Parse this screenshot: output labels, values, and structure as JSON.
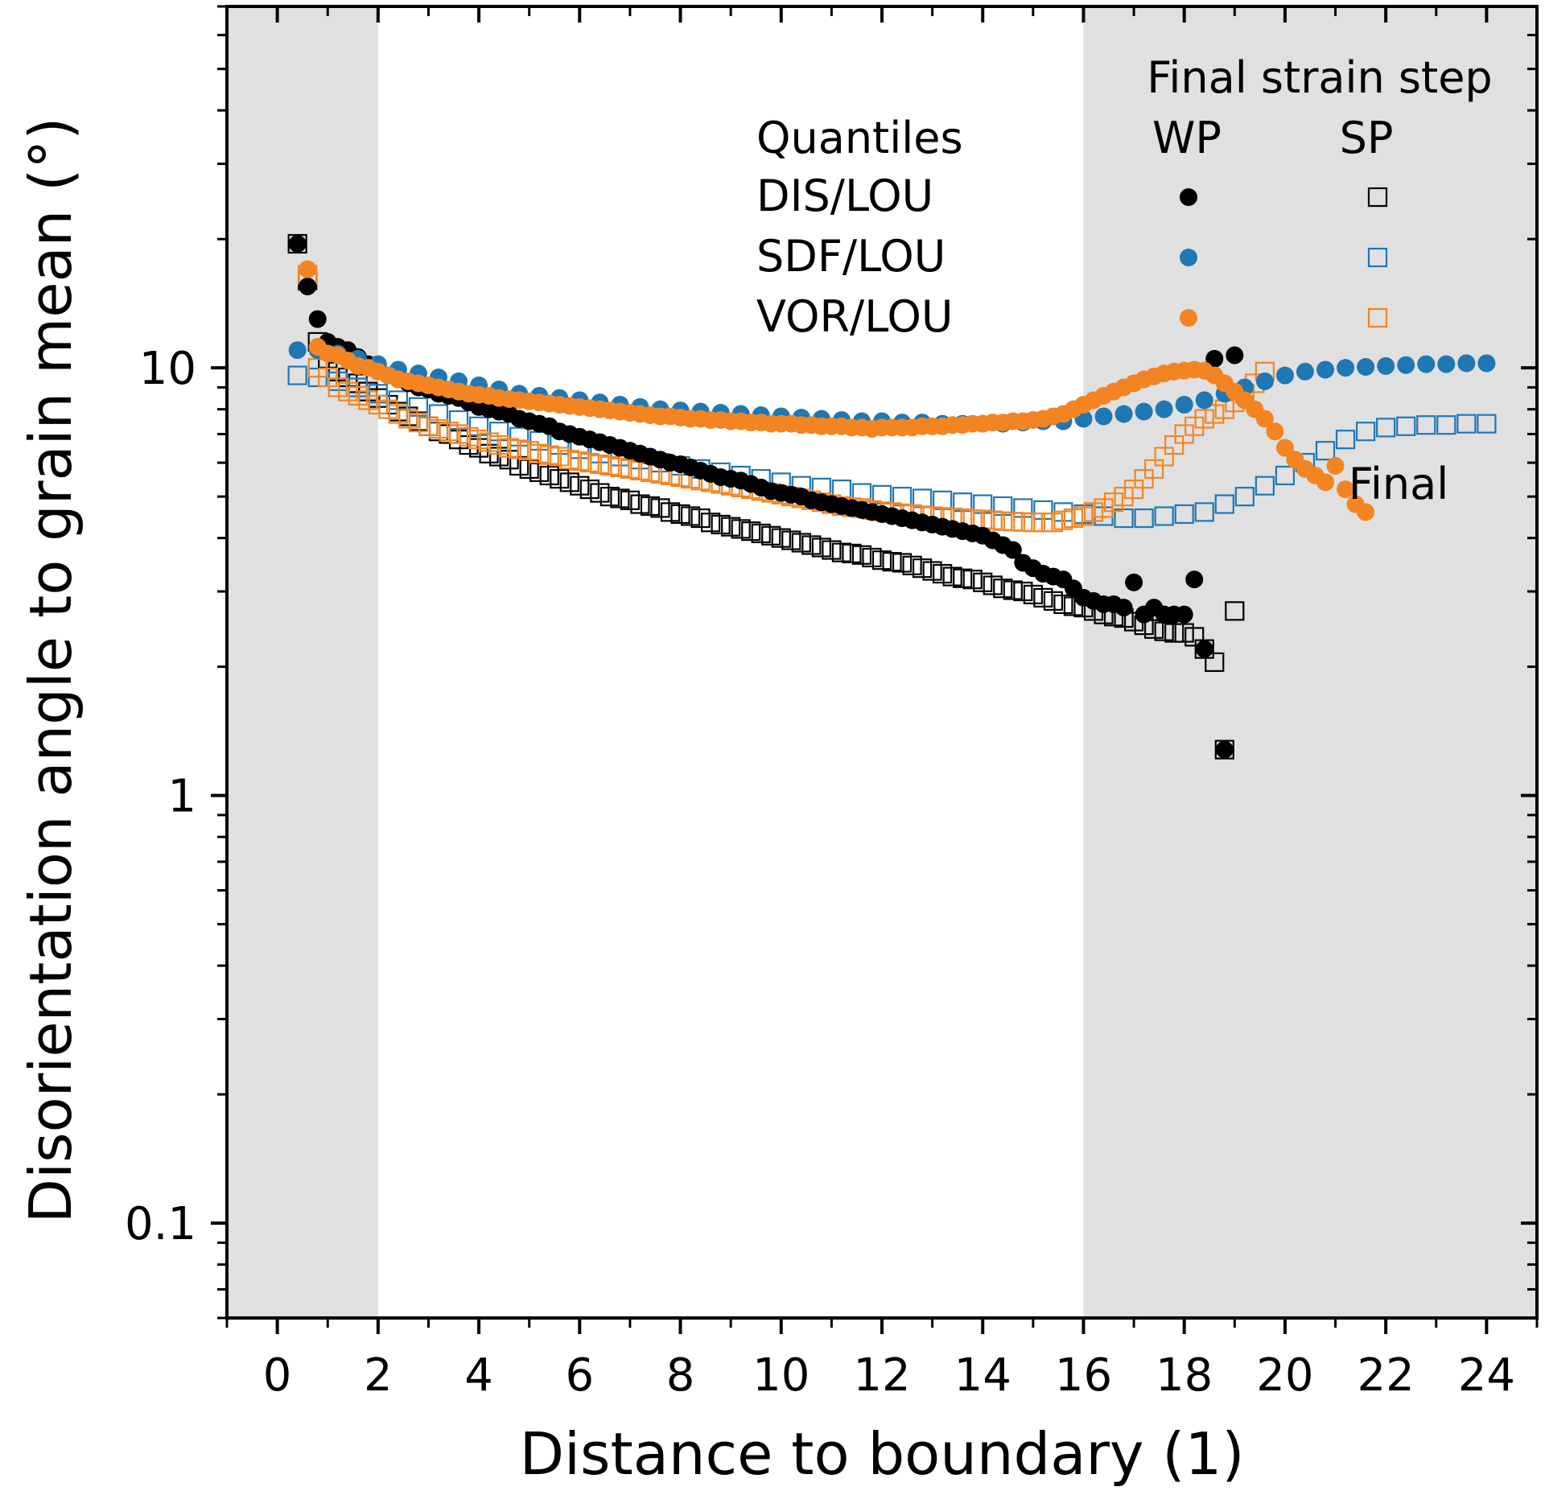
{
  "chart_data": {
    "type": "scatter",
    "title": "",
    "xlabel": "Distance to boundary (1)",
    "ylabel": "Disorientation angle to grain mean (°)",
    "xlim": [
      -1,
      25
    ],
    "ylim": [
      0.06,
      70
    ],
    "yscale": "log",
    "xticks": [
      0,
      2,
      4,
      6,
      8,
      10,
      12,
      14,
      16,
      18,
      20,
      22,
      24
    ],
    "xtick_labels": [
      "0",
      "2",
      "4",
      "6",
      "8",
      "10",
      "12",
      "14",
      "16",
      "18",
      "20",
      "22",
      "24"
    ],
    "yticks": [
      0.1,
      1,
      10
    ],
    "ytick_labels": [
      "0.1",
      "1",
      "10"
    ],
    "shaded_regions": [
      [
        -1,
        2
      ],
      [
        16,
        25
      ]
    ],
    "shade_color": "#e0e0e0",
    "annotation": "Final",
    "legend": {
      "title": "Final strain step",
      "row_header": "Quantiles",
      "col_headers": [
        "WP",
        "SP"
      ],
      "rows": [
        "DIS/LOU",
        "SDF/LOU",
        "VOR/LOU"
      ],
      "placement": "top-right"
    },
    "series": [
      {
        "name": "DIS/LOU WP",
        "color": "#000000",
        "marker": "circle-filled",
        "x": [
          0.4,
          0.6,
          0.8,
          1.0,
          1.2,
          1.4,
          1.6,
          1.8,
          2.0,
          2.2,
          2.4,
          2.6,
          2.8,
          3.0,
          3.2,
          3.4,
          3.6,
          3.8,
          4.0,
          4.2,
          4.4,
          4.6,
          4.8,
          5.0,
          5.2,
          5.4,
          5.6,
          5.8,
          6.0,
          6.2,
          6.4,
          6.6,
          6.8,
          7.0,
          7.2,
          7.4,
          7.6,
          7.8,
          8.0,
          8.2,
          8.4,
          8.6,
          8.8,
          9.0,
          9.2,
          9.4,
          9.6,
          9.8,
          10.0,
          10.2,
          10.4,
          10.6,
          10.8,
          11.0,
          11.2,
          11.4,
          11.6,
          11.8,
          12.0,
          12.2,
          12.4,
          12.6,
          12.8,
          13.0,
          13.2,
          13.4,
          13.6,
          13.8,
          14.0,
          14.2,
          14.4,
          14.6,
          14.8,
          15.0,
          15.2,
          15.4,
          15.6,
          15.8,
          16.0,
          16.2,
          16.4,
          16.6,
          16.8,
          17.0,
          17.2,
          17.4,
          17.6,
          17.8,
          18.0,
          18.2,
          18.4,
          18.6,
          18.8,
          19.0
        ],
        "y": [
          19.5,
          15.5,
          13.0,
          11.5,
          11.2,
          11.0,
          10.6,
          10.2,
          9.9,
          9.6,
          9.4,
          9.2,
          9.0,
          8.9,
          8.7,
          8.6,
          8.5,
          8.3,
          8.1,
          8.0,
          7.9,
          7.8,
          7.6,
          7.5,
          7.4,
          7.3,
          7.1,
          7.0,
          6.9,
          6.8,
          6.7,
          6.6,
          6.5,
          6.4,
          6.3,
          6.2,
          6.1,
          6.0,
          5.95,
          5.85,
          5.75,
          5.65,
          5.55,
          5.5,
          5.45,
          5.35,
          5.25,
          5.15,
          5.1,
          5.05,
          5.0,
          4.9,
          4.85,
          4.8,
          4.75,
          4.7,
          4.65,
          4.6,
          4.55,
          4.5,
          4.45,
          4.4,
          4.35,
          4.3,
          4.25,
          4.2,
          4.15,
          4.1,
          4.05,
          3.95,
          3.85,
          3.75,
          3.5,
          3.4,
          3.3,
          3.25,
          3.2,
          3.05,
          2.9,
          2.85,
          2.8,
          2.8,
          2.75,
          3.15,
          2.65,
          2.75,
          2.65,
          2.65,
          2.65,
          3.2,
          2.2,
          10.5,
          1.28,
          10.7
        ]
      },
      {
        "name": "DIS/LOU SP",
        "color": "#000000",
        "marker": "square-open",
        "x": [
          0.4,
          0.6,
          0.8,
          1.0,
          1.2,
          1.4,
          1.6,
          1.8,
          2.0,
          2.2,
          2.4,
          2.6,
          2.8,
          3.0,
          3.2,
          3.4,
          3.6,
          3.8,
          4.0,
          4.2,
          4.4,
          4.6,
          4.8,
          5.0,
          5.2,
          5.4,
          5.6,
          5.8,
          6.0,
          6.2,
          6.4,
          6.6,
          6.8,
          7.0,
          7.2,
          7.4,
          7.6,
          7.8,
          8.0,
          8.2,
          8.4,
          8.6,
          8.8,
          9.0,
          9.2,
          9.4,
          9.6,
          9.8,
          10.0,
          10.2,
          10.4,
          10.6,
          10.8,
          11.0,
          11.2,
          11.4,
          11.6,
          11.8,
          12.0,
          12.2,
          12.4,
          12.6,
          12.8,
          13.0,
          13.2,
          13.4,
          13.6,
          13.8,
          14.0,
          14.2,
          14.4,
          14.6,
          14.8,
          15.0,
          15.2,
          15.4,
          15.6,
          15.8,
          16.0,
          16.2,
          16.4,
          16.6,
          16.8,
          17.0,
          17.2,
          17.4,
          17.6,
          17.8,
          18.0,
          18.2,
          18.4,
          18.6,
          18.8,
          19.0
        ],
        "y": [
          19.5,
          16.0,
          11.5,
          10.5,
          9.8,
          9.5,
          9.2,
          8.8,
          8.5,
          8.2,
          7.9,
          7.7,
          7.5,
          7.3,
          7.1,
          7.0,
          6.8,
          6.6,
          6.5,
          6.3,
          6.2,
          6.1,
          5.9,
          5.8,
          5.7,
          5.6,
          5.5,
          5.4,
          5.3,
          5.2,
          5.1,
          5.0,
          4.95,
          4.9,
          4.8,
          4.75,
          4.7,
          4.6,
          4.55,
          4.5,
          4.45,
          4.35,
          4.3,
          4.25,
          4.2,
          4.15,
          4.1,
          4.05,
          4.0,
          3.95,
          3.9,
          3.85,
          3.8,
          3.75,
          3.7,
          3.68,
          3.65,
          3.6,
          3.55,
          3.52,
          3.5,
          3.45,
          3.4,
          3.35,
          3.3,
          3.25,
          3.22,
          3.2,
          3.15,
          3.1,
          3.05,
          3.02,
          3.0,
          2.95,
          2.9,
          2.85,
          2.8,
          2.77,
          2.75,
          2.7,
          2.65,
          2.62,
          2.6,
          2.55,
          2.5,
          2.45,
          2.42,
          2.4,
          2.4,
          2.35,
          2.2,
          2.05,
          1.28,
          2.7
        ]
      },
      {
        "name": "SDF/LOU WP",
        "color": "#1f77b4",
        "marker": "circle-filled",
        "x": [
          0.4,
          0.8,
          1.2,
          1.6,
          2.0,
          2.4,
          2.8,
          3.2,
          3.6,
          4.0,
          4.4,
          4.8,
          5.2,
          5.6,
          6.0,
          6.4,
          6.8,
          7.2,
          7.6,
          8.0,
          8.4,
          8.8,
          9.2,
          9.6,
          10.0,
          10.4,
          10.8,
          11.2,
          11.6,
          12.0,
          12.4,
          12.8,
          13.2,
          13.6,
          14.0,
          14.4,
          14.8,
          15.2,
          15.6,
          16.0,
          16.4,
          16.8,
          17.2,
          17.6,
          18.0,
          18.4,
          18.8,
          19.2,
          19.6,
          20.0,
          20.4,
          20.8,
          21.2,
          21.6,
          22.0,
          22.4,
          22.8,
          23.2,
          23.6,
          24.0
        ],
        "y": [
          11.0,
          11.0,
          10.8,
          10.5,
          10.2,
          9.9,
          9.7,
          9.5,
          9.3,
          9.1,
          8.9,
          8.7,
          8.6,
          8.5,
          8.4,
          8.3,
          8.2,
          8.1,
          8.0,
          7.95,
          7.9,
          7.85,
          7.8,
          7.75,
          7.7,
          7.65,
          7.6,
          7.55,
          7.5,
          7.5,
          7.45,
          7.45,
          7.4,
          7.4,
          7.4,
          7.4,
          7.45,
          7.5,
          7.5,
          7.6,
          7.7,
          7.8,
          7.9,
          8.0,
          8.2,
          8.4,
          8.7,
          9.0,
          9.3,
          9.6,
          9.8,
          9.9,
          10.0,
          10.05,
          10.1,
          10.15,
          10.2,
          10.2,
          10.25,
          10.25
        ]
      },
      {
        "name": "SDF/LOU SP",
        "color": "#1f77b4",
        "marker": "square-open",
        "x": [
          0.4,
          0.8,
          1.2,
          1.6,
          2.0,
          2.4,
          2.8,
          3.2,
          3.6,
          4.0,
          4.4,
          4.8,
          5.2,
          5.6,
          6.0,
          6.4,
          6.8,
          7.2,
          7.6,
          8.0,
          8.4,
          8.8,
          9.2,
          9.6,
          10.0,
          10.4,
          10.8,
          11.2,
          11.6,
          12.0,
          12.4,
          12.8,
          13.2,
          13.6,
          14.0,
          14.4,
          14.8,
          15.2,
          15.6,
          16.0,
          16.4,
          16.8,
          17.2,
          17.6,
          18.0,
          18.4,
          18.8,
          19.2,
          19.6,
          20.0,
          20.4,
          20.8,
          21.2,
          21.6,
          22.0,
          22.4,
          22.8,
          23.2,
          23.6,
          24.0
        ],
        "y": [
          9.6,
          9.5,
          9.3,
          9.0,
          8.7,
          8.4,
          8.1,
          7.8,
          7.55,
          7.3,
          7.1,
          6.9,
          6.75,
          6.6,
          6.45,
          6.3,
          6.2,
          6.1,
          6.0,
          5.9,
          5.8,
          5.7,
          5.6,
          5.5,
          5.4,
          5.3,
          5.25,
          5.2,
          5.1,
          5.05,
          5.0,
          4.95,
          4.9,
          4.85,
          4.8,
          4.75,
          4.7,
          4.65,
          4.6,
          4.55,
          4.5,
          4.45,
          4.45,
          4.5,
          4.55,
          4.6,
          4.8,
          5.0,
          5.3,
          5.6,
          6.0,
          6.4,
          6.8,
          7.1,
          7.25,
          7.3,
          7.35,
          7.35,
          7.4,
          7.4
        ]
      },
      {
        "name": "VOR/LOU WP",
        "color": "#f28522",
        "marker": "circle-filled",
        "x": [
          0.6,
          0.8,
          1.0,
          1.2,
          1.4,
          1.6,
          1.8,
          2.0,
          2.2,
          2.4,
          2.6,
          2.8,
          3.0,
          3.2,
          3.4,
          3.6,
          3.8,
          4.0,
          4.2,
          4.4,
          4.6,
          4.8,
          5.0,
          5.2,
          5.4,
          5.6,
          5.8,
          6.0,
          6.2,
          6.4,
          6.6,
          6.8,
          7.0,
          7.2,
          7.4,
          7.6,
          7.8,
          8.0,
          8.2,
          8.4,
          8.6,
          8.8,
          9.0,
          9.2,
          9.4,
          9.6,
          9.8,
          10.0,
          10.2,
          10.4,
          10.6,
          10.8,
          11.0,
          11.2,
          11.4,
          11.6,
          11.8,
          12.0,
          12.2,
          12.4,
          12.6,
          12.8,
          13.0,
          13.2,
          13.4,
          13.6,
          13.8,
          14.0,
          14.2,
          14.4,
          14.6,
          14.8,
          15.0,
          15.2,
          15.4,
          15.6,
          15.8,
          16.0,
          16.2,
          16.4,
          16.6,
          16.8,
          17.0,
          17.2,
          17.4,
          17.6,
          17.8,
          18.0,
          18.2,
          18.4,
          18.6,
          18.8,
          19.0,
          19.2,
          19.4,
          19.6,
          19.8,
          20.0,
          20.2,
          20.4,
          20.6,
          20.8,
          21.0,
          21.2,
          21.4,
          21.6
        ],
        "y": [
          17.0,
          11.2,
          10.8,
          10.7,
          10.4,
          10.1,
          10.0,
          9.8,
          9.6,
          9.4,
          9.3,
          9.2,
          9.1,
          9.0,
          8.9,
          8.8,
          8.7,
          8.65,
          8.6,
          8.5,
          8.45,
          8.4,
          8.35,
          8.3,
          8.25,
          8.2,
          8.15,
          8.1,
          8.05,
          8.0,
          7.95,
          7.9,
          7.85,
          7.8,
          7.75,
          7.7,
          7.7,
          7.65,
          7.6,
          7.6,
          7.55,
          7.55,
          7.5,
          7.5,
          7.45,
          7.45,
          7.4,
          7.4,
          7.4,
          7.35,
          7.35,
          7.3,
          7.3,
          7.3,
          7.25,
          7.25,
          7.2,
          7.25,
          7.25,
          7.25,
          7.25,
          7.3,
          7.3,
          7.3,
          7.35,
          7.35,
          7.4,
          7.4,
          7.45,
          7.45,
          7.5,
          7.5,
          7.55,
          7.6,
          7.7,
          7.8,
          8.0,
          8.2,
          8.4,
          8.6,
          8.8,
          9.0,
          9.2,
          9.4,
          9.55,
          9.7,
          9.8,
          9.85,
          9.9,
          9.85,
          9.6,
          9.2,
          8.8,
          8.4,
          8.0,
          7.6,
          7.1,
          6.5,
          6.1,
          5.8,
          5.6,
          5.4,
          5.9,
          5.2,
          4.8,
          4.6
        ]
      },
      {
        "name": "VOR/LOU SP",
        "color": "#f28522",
        "marker": "square-open",
        "x": [
          0.6,
          0.8,
          1.0,
          1.2,
          1.4,
          1.6,
          1.8,
          2.0,
          2.2,
          2.4,
          2.6,
          2.8,
          3.0,
          3.2,
          3.4,
          3.6,
          3.8,
          4.0,
          4.2,
          4.4,
          4.6,
          4.8,
          5.0,
          5.2,
          5.4,
          5.6,
          5.8,
          6.0,
          6.2,
          6.4,
          6.6,
          6.8,
          7.0,
          7.2,
          7.4,
          7.6,
          7.8,
          8.0,
          8.2,
          8.4,
          8.6,
          8.8,
          9.0,
          9.2,
          9.4,
          9.6,
          9.8,
          10.0,
          10.2,
          10.4,
          10.6,
          10.8,
          11.0,
          11.2,
          11.4,
          11.6,
          11.8,
          12.0,
          12.2,
          12.4,
          12.6,
          12.8,
          13.0,
          13.2,
          13.4,
          13.6,
          13.8,
          14.0,
          14.2,
          14.4,
          14.6,
          14.8,
          15.0,
          15.2,
          15.4,
          15.6,
          15.8,
          16.0,
          16.2,
          16.4,
          16.6,
          16.8,
          17.0,
          17.2,
          17.4,
          17.6,
          17.8,
          18.0,
          18.2,
          18.4,
          18.6,
          18.8,
          19.0,
          19.2,
          19.4,
          19.6
        ],
        "y": [
          16.5,
          10.0,
          9.5,
          9.0,
          8.8,
          8.6,
          8.4,
          8.2,
          8.0,
          7.8,
          7.6,
          7.45,
          7.3,
          7.2,
          7.1,
          7.0,
          6.9,
          6.8,
          6.7,
          6.6,
          6.5,
          6.45,
          6.4,
          6.3,
          6.25,
          6.2,
          6.1,
          6.05,
          6.0,
          5.95,
          5.9,
          5.85,
          5.8,
          5.75,
          5.7,
          5.65,
          5.6,
          5.55,
          5.5,
          5.45,
          5.4,
          5.35,
          5.3,
          5.25,
          5.2,
          5.15,
          5.1,
          5.05,
          5.0,
          4.95,
          4.9,
          4.85,
          4.8,
          4.75,
          4.72,
          4.7,
          4.65,
          4.62,
          4.6,
          4.57,
          4.55,
          4.52,
          4.5,
          4.48,
          4.47,
          4.45,
          4.43,
          4.42,
          4.4,
          4.38,
          4.37,
          4.36,
          4.35,
          4.35,
          4.35,
          4.4,
          4.45,
          4.5,
          4.6,
          4.7,
          4.85,
          5.0,
          5.2,
          5.5,
          5.8,
          6.2,
          6.6,
          7.0,
          7.3,
          7.6,
          7.8,
          8.0,
          8.3,
          8.7,
          9.2,
          9.8
        ]
      }
    ]
  }
}
